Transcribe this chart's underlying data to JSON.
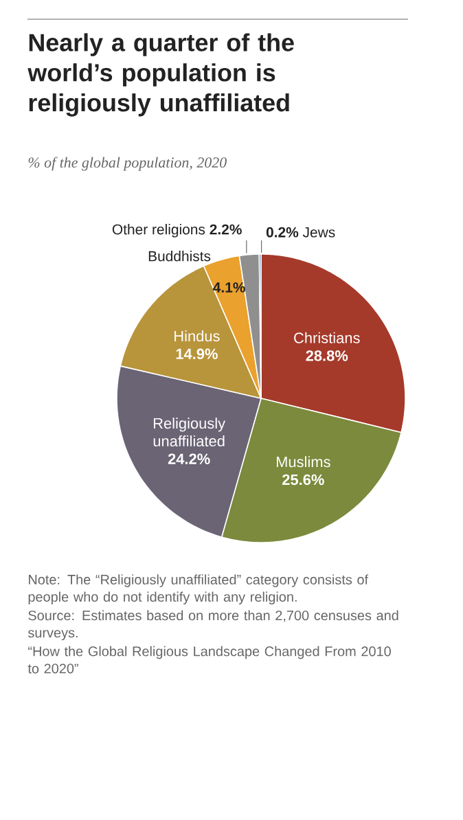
{
  "chart_data": {
    "type": "pie",
    "title": "Nearly a quarter of the world’s population is religiously unaffiliated",
    "subtitle": "% of the global population, 2020",
    "categories": [
      "Christians",
      "Muslims",
      "Religiously unaffiliated",
      "Hindus",
      "Buddhists",
      "Other religions",
      "Jews"
    ],
    "values": [
      28.8,
      25.6,
      24.2,
      14.9,
      4.1,
      2.2,
      0.2
    ],
    "value_labels": [
      "28.8%",
      "25.6%",
      "24.2%",
      "14.9%",
      "4.1%",
      "2.2%",
      "0.2%"
    ],
    "colors": [
      "#a53a2a",
      "#7b8a3c",
      "#6a6475",
      "#b8943a",
      "#eba12d",
      "#8f8f8f",
      "#4b7fb4"
    ],
    "annotations": [
      "Note: The “Religiously unaffiliated” category consists of people who do not identify with any religion.",
      "Source: Estimates based on more than 2,700 censuses and surveys.",
      "“How the Global Religious Landscape Changed From 2010 to 2020”"
    ]
  }
}
